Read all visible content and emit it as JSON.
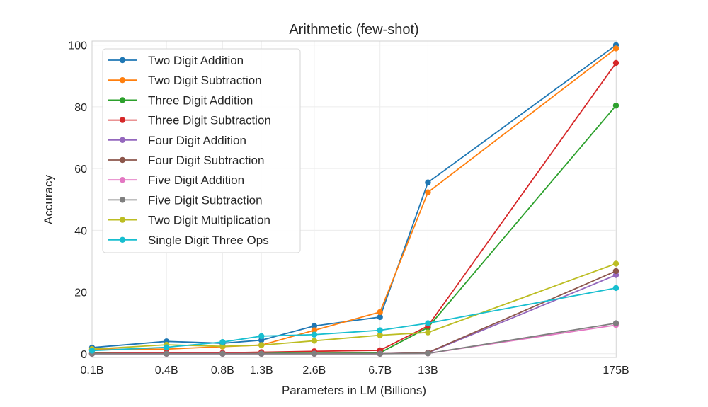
{
  "chart_data": {
    "type": "line",
    "title": "Arithmetic (few-shot)",
    "xlabel": "Parameters in LM (Billions)",
    "ylabel": "Accuracy",
    "x_scale": "log",
    "x": [
      0.125,
      0.35,
      0.76,
      1.3,
      2.7,
      6.7,
      13,
      175
    ],
    "xticklabels": [
      "0.1B",
      "0.4B",
      "0.8B",
      "1.3B",
      "2.6B",
      "6.7B",
      "13B",
      "175B"
    ],
    "ylim": [
      -1.2,
      101.3
    ],
    "yticks": [
      0,
      20,
      40,
      60,
      80,
      100
    ],
    "grid": true,
    "legend_position": "top-left",
    "series": [
      {
        "name": "Two Digit Addition",
        "color": "#1f77b4",
        "values": [
          2.0,
          4.0,
          3.4,
          4.4,
          9.0,
          11.9,
          55.5,
          100.0
        ]
      },
      {
        "name": "Two Digit Subtraction",
        "color": "#ff7f0e",
        "values": [
          1.5,
          1.5,
          2.3,
          2.8,
          7.6,
          13.5,
          52.3,
          98.9
        ]
      },
      {
        "name": "Three Digit Addition",
        "color": "#2ca02c",
        "values": [
          0.2,
          0.2,
          0.2,
          0.3,
          0.5,
          0.3,
          8.5,
          80.4
        ]
      },
      {
        "name": "Three Digit Subtraction",
        "color": "#d62728",
        "values": [
          0.1,
          0.3,
          0.3,
          0.5,
          0.8,
          1.1,
          9.0,
          94.2
        ]
      },
      {
        "name": "Four Digit Addition",
        "color": "#9467bd",
        "values": [
          0.0,
          0.0,
          0.0,
          0.0,
          0.0,
          0.0,
          0.3,
          25.5
        ]
      },
      {
        "name": "Four Digit Subtraction",
        "color": "#8c564b",
        "values": [
          0.0,
          0.0,
          0.0,
          0.0,
          0.0,
          0.0,
          0.4,
          26.8
        ]
      },
      {
        "name": "Five Digit Addition",
        "color": "#e377c2",
        "values": [
          0.0,
          0.0,
          0.0,
          0.0,
          0.0,
          0.0,
          0.1,
          9.3
        ]
      },
      {
        "name": "Five Digit Subtraction",
        "color": "#7f7f7f",
        "values": [
          0.0,
          0.0,
          0.0,
          0.0,
          0.0,
          0.0,
          0.1,
          9.9
        ]
      },
      {
        "name": "Two Digit Multiplication",
        "color": "#bcbd22",
        "values": [
          1.5,
          2.9,
          2.4,
          2.8,
          4.2,
          6.0,
          6.9,
          29.2
        ]
      },
      {
        "name": "Single Digit Three Ops",
        "color": "#17becf",
        "values": [
          1.0,
          2.1,
          3.8,
          5.7,
          6.2,
          7.6,
          9.9,
          21.3
        ]
      }
    ]
  }
}
